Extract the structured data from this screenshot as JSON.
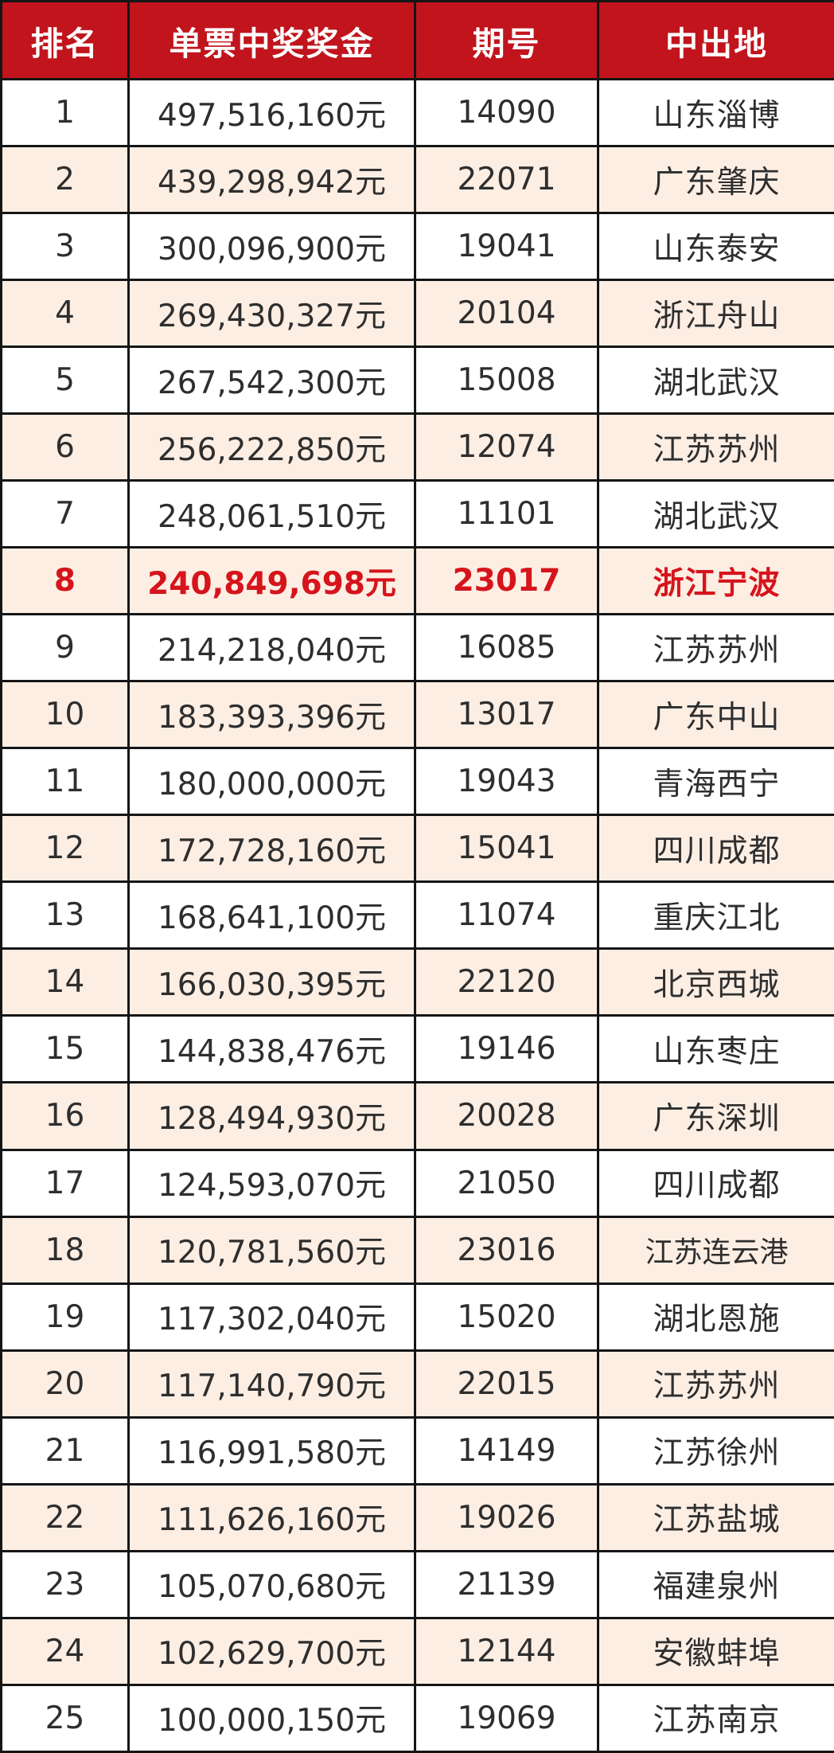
{
  "colors": {
    "header_bg": "#c1141c",
    "header_text": "#ffffff",
    "stripe": "#fdeee4",
    "highlight_text": "#d6141b",
    "border": "#151515"
  },
  "table": {
    "headers": [
      "排名",
      "单票中奖奖金",
      "期号",
      "中出地"
    ],
    "highlight_rank": "8",
    "rows": [
      {
        "rank": "1",
        "prize": "497,516,160元",
        "issue": "14090",
        "location": "山东淄博"
      },
      {
        "rank": "2",
        "prize": "439,298,942元",
        "issue": "22071",
        "location": "广东肇庆"
      },
      {
        "rank": "3",
        "prize": "300,096,900元",
        "issue": "19041",
        "location": "山东泰安"
      },
      {
        "rank": "4",
        "prize": "269,430,327元",
        "issue": "20104",
        "location": "浙江舟山"
      },
      {
        "rank": "5",
        "prize": "267,542,300元",
        "issue": "15008",
        "location": "湖北武汉"
      },
      {
        "rank": "6",
        "prize": "256,222,850元",
        "issue": "12074",
        "location": "江苏苏州"
      },
      {
        "rank": "7",
        "prize": "248,061,510元",
        "issue": "11101",
        "location": "湖北武汉"
      },
      {
        "rank": "8",
        "prize": "240,849,698元",
        "issue": "23017",
        "location": "浙江宁波"
      },
      {
        "rank": "9",
        "prize": "214,218,040元",
        "issue": "16085",
        "location": "江苏苏州"
      },
      {
        "rank": "10",
        "prize": "183,393,396元",
        "issue": "13017",
        "location": "广东中山"
      },
      {
        "rank": "11",
        "prize": "180,000,000元",
        "issue": "19043",
        "location": "青海西宁"
      },
      {
        "rank": "12",
        "prize": "172,728,160元",
        "issue": "15041",
        "location": "四川成都"
      },
      {
        "rank": "13",
        "prize": "168,641,100元",
        "issue": "11074",
        "location": "重庆江北"
      },
      {
        "rank": "14",
        "prize": "166,030,395元",
        "issue": "22120",
        "location": "北京西城"
      },
      {
        "rank": "15",
        "prize": "144,838,476元",
        "issue": "19146",
        "location": "山东枣庄"
      },
      {
        "rank": "16",
        "prize": "128,494,930元",
        "issue": "20028",
        "location": "广东深圳"
      },
      {
        "rank": "17",
        "prize": "124,593,070元",
        "issue": "21050",
        "location": "四川成都"
      },
      {
        "rank": "18",
        "prize": "120,781,560元",
        "issue": "23016",
        "location": "江苏连云港"
      },
      {
        "rank": "19",
        "prize": "117,302,040元",
        "issue": "15020",
        "location": "湖北恩施"
      },
      {
        "rank": "20",
        "prize": "117,140,790元",
        "issue": "22015",
        "location": "江苏苏州"
      },
      {
        "rank": "21",
        "prize": "116,991,580元",
        "issue": "14149",
        "location": "江苏徐州"
      },
      {
        "rank": "22",
        "prize": "111,626,160元",
        "issue": "19026",
        "location": "江苏盐城"
      },
      {
        "rank": "23",
        "prize": "105,070,680元",
        "issue": "21139",
        "location": "福建泉州"
      },
      {
        "rank": "24",
        "prize": "102,629,700元",
        "issue": "12144",
        "location": "安徽蚌埠"
      },
      {
        "rank": "25",
        "prize": "100,000,150元",
        "issue": "19069",
        "location": "江苏南京"
      }
    ]
  }
}
